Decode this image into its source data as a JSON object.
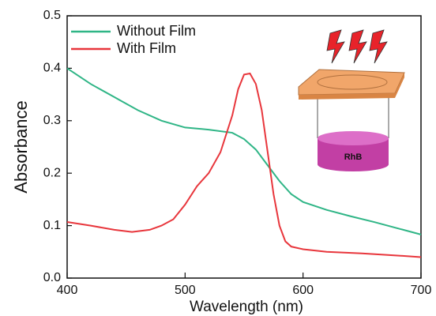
{
  "chart_data": {
    "type": "line",
    "x_label": "Wavelength (nm)",
    "y_label": "Absorbance",
    "xlim": [
      400,
      700
    ],
    "xticks": [
      400,
      500,
      600,
      700
    ],
    "ylim": [
      0,
      0.5
    ],
    "yticks": [
      {
        "value": 0,
        "label": "0.0"
      },
      0.1,
      0.2,
      0.3,
      0.4,
      0.5
    ],
    "legend": "upper left",
    "inset_label": "RhB",
    "series": [
      {
        "name": "Without Film",
        "color": "#2fb586",
        "x": [
          400,
          420,
          440,
          460,
          480,
          500,
          520,
          540,
          550,
          560,
          570,
          580,
          590,
          600,
          620,
          640,
          660,
          680,
          700
        ],
        "values": [
          0.4,
          0.37,
          0.345,
          0.32,
          0.3,
          0.287,
          0.283,
          0.277,
          0.265,
          0.245,
          0.215,
          0.185,
          0.16,
          0.145,
          0.13,
          0.118,
          0.107,
          0.095,
          0.083
        ]
      },
      {
        "name": "With Film",
        "color": "#e8363c",
        "x": [
          400,
          420,
          440,
          455,
          470,
          480,
          490,
          500,
          510,
          520,
          530,
          540,
          545,
          550,
          555,
          560,
          565,
          570,
          575,
          580,
          585,
          590,
          600,
          620,
          650,
          680,
          700
        ],
        "values": [
          0.107,
          0.1,
          0.092,
          0.088,
          0.092,
          0.1,
          0.112,
          0.14,
          0.175,
          0.2,
          0.24,
          0.31,
          0.36,
          0.388,
          0.39,
          0.37,
          0.32,
          0.24,
          0.16,
          0.1,
          0.07,
          0.06,
          0.055,
          0.05,
          0.047,
          0.043,
          0.04
        ]
      }
    ]
  }
}
